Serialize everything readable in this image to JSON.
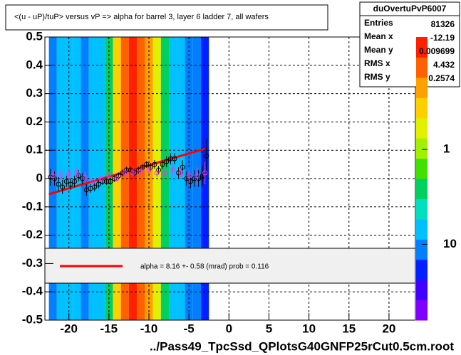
{
  "chart_data": {
    "type": "heatmap",
    "title": "<(u - uP)/tuP> versus   vP => alpha for barrel 3, layer 6 ladder 7, all wafers",
    "x_label": "../Pass49_TpcSsd_QPlotsG40GNFP25rCut0.5cm.root",
    "xlim": [
      -23,
      23.3
    ],
    "ylim": [
      -0.5,
      0.5
    ],
    "xticks": [
      -20,
      -15,
      -10,
      -5,
      0,
      5,
      10,
      15,
      20
    ],
    "yticks": [
      -0.5,
      -0.4,
      -0.3,
      -0.2,
      -0.1,
      0,
      0.1,
      0.2,
      0.3,
      0.4,
      0.5
    ],
    "grid": true,
    "bins": [
      -22.5,
      -21.5,
      -20.5,
      -19.5,
      -18.5,
      -17.5,
      -16.5,
      -15.5,
      -14.5,
      -13.5,
      -12.5,
      -11.5,
      -10.5,
      -9.5,
      -8.5,
      -7.5,
      -6.5,
      -5.5,
      -4.5,
      -3.5,
      -2.5
    ],
    "density": [
      4,
      5,
      5,
      5,
      4,
      5,
      6,
      8,
      14,
      16,
      18,
      17,
      15,
      12,
      8,
      6,
      5,
      4,
      4,
      3
    ],
    "palette": [
      "#8000ff",
      "#4000ff",
      "#0020ff",
      "#0080ff",
      "#00c0ff",
      "#00e0c0",
      "#00d060",
      "#40e000",
      "#a0f000",
      "#e0f000",
      "#ffd000",
      "#ffa000",
      "#ff6000",
      "#ff2000"
    ],
    "zlim": [
      0.065,
      63
    ],
    "zticks": [
      1,
      10
    ],
    "series": [
      {
        "color": "#000000",
        "x": [
          -22.3,
          -21.8,
          -21.3,
          -20.8,
          -20.3,
          -19.8,
          -19.3,
          -18.8,
          -18.3,
          -17.8,
          -17.3,
          -16.8,
          -16.3,
          -15.8,
          -15.3,
          -14.8,
          -14.3,
          -13.8,
          -13.3,
          -12.8,
          -12.3,
          -11.8,
          -11.3,
          -10.8,
          -10.3,
          -9.8,
          -9.3,
          -8.8,
          -8.3,
          -7.8,
          -7.3,
          -6.8,
          -6.3,
          -5.8,
          -5.3,
          -4.8,
          -4.3,
          -3.8,
          -3.3,
          -2.8
        ],
        "values": [
          0.005,
          0.0,
          -0.02,
          -0.03,
          -0.01,
          -0.02,
          -0.01,
          0.01,
          0.0,
          -0.04,
          -0.035,
          -0.03,
          -0.02,
          -0.01,
          -0.01,
          -0.01,
          0.0,
          0.01,
          0.02,
          0.03,
          0.03,
          0.02,
          0.03,
          0.04,
          0.05,
          0.04,
          0.05,
          0.03,
          0.05,
          0.06,
          0.07,
          0.07,
          0.02,
          0.04,
          0.0,
          -0.01,
          0.0,
          0.0,
          0.01,
          0.08
        ],
        "errors": [
          0.03,
          0.025,
          0.025,
          0.025,
          0.02,
          0.02,
          0.02,
          0.02,
          0.02,
          0.02,
          0.015,
          0.015,
          0.015,
          0.012,
          0.012,
          0.012,
          0.012,
          0.012,
          0.012,
          0.012,
          0.012,
          0.012,
          0.012,
          0.012,
          0.012,
          0.015,
          0.015,
          0.015,
          0.015,
          0.02,
          0.02,
          0.02,
          0.02,
          0.025,
          0.025,
          0.025,
          0.03,
          0.03,
          0.035,
          0.06
        ]
      },
      {
        "color": "#e040e0",
        "x": [
          -22.0,
          -21.0,
          -20.0,
          -19.0,
          -18.0,
          -17.0,
          -16.0,
          -15.0,
          -14.0,
          -13.0,
          -12.0,
          -11.0,
          -10.0,
          -9.0,
          -8.0,
          -7.0,
          -6.0,
          -5.0,
          -4.0,
          -3.0
        ],
        "values": [
          0.01,
          0.01,
          0.015,
          0.02,
          0.005,
          -0.01,
          0.0,
          0.01,
          0.0,
          0.02,
          0.02,
          0.025,
          0.03,
          0.02,
          0.02,
          0.03,
          0.02,
          0.01,
          0.01,
          0.02
        ],
        "errors": [
          0.02,
          0.02,
          0.02,
          0.02,
          0.02,
          0.015,
          0.012,
          0.012,
          0.012,
          0.012,
          0.012,
          0.012,
          0.012,
          0.015,
          0.015,
          0.02,
          0.02,
          0.025,
          0.03,
          0.04
        ]
      }
    ],
    "fit": {
      "color": "#ff0000",
      "x": [
        -22.5,
        -3
      ],
      "y": [
        -0.055,
        0.105
      ]
    },
    "legend": {
      "label": "alpha =    8.16 +-  0.58 (mrad) prob = 0.116"
    },
    "stats": {
      "title": "duOvertuPvP6007",
      "rows": [
        [
          "Entries",
          "81326"
        ],
        [
          "Mean x",
          "-12.19"
        ],
        [
          "Mean y",
          "0.009699"
        ],
        [
          "RMS x",
          "4.432"
        ],
        [
          "RMS y",
          "0.2574"
        ]
      ]
    }
  }
}
